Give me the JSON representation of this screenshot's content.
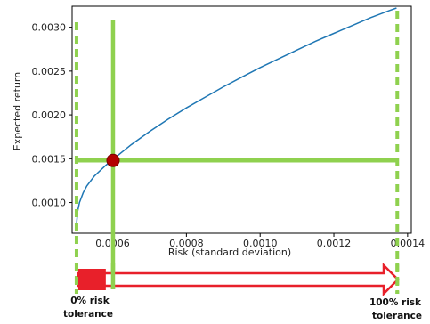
{
  "chart_data": {
    "type": "line",
    "xlabel": "Risk (standard deviation)",
    "ylabel": "Expected return",
    "xlim": [
      0.00049,
      0.00141
    ],
    "ylim": [
      0.00065,
      0.00324
    ],
    "xticks": [
      0.0006,
      0.0008,
      0.001,
      0.0012,
      0.0014
    ],
    "xtick_labels": [
      "0.0006",
      "0.0008",
      "0.0010",
      "0.0012",
      "0.0014"
    ],
    "yticks": [
      0.001,
      0.0015,
      0.002,
      0.0025,
      0.003
    ],
    "ytick_labels": [
      "0.0010",
      "0.0015",
      "0.0020",
      "0.0025",
      "0.0030"
    ],
    "grid": false,
    "frontier": {
      "color": "#1f77b4",
      "x": [
        0.000502,
        0.000505,
        0.00051,
        0.00052,
        0.00053,
        0.00055,
        0.00058,
        0.0006,
        0.00065,
        0.0007,
        0.00075,
        0.0008,
        0.00085,
        0.0009,
        0.00095,
        0.001,
        0.00105,
        0.0011,
        0.00115,
        0.0012,
        0.00125,
        0.0013,
        0.00135,
        0.00137
      ],
      "y": [
        0.00075,
        0.0009,
        0.001,
        0.00111,
        0.00119,
        0.0013,
        0.00142,
        0.00149,
        0.00166,
        0.00181,
        0.00195,
        0.00208,
        0.0022,
        0.00232,
        0.00243,
        0.00254,
        0.00264,
        0.00274,
        0.00284,
        0.00293,
        0.00302,
        0.00311,
        0.00319,
        0.00322
      ]
    },
    "selected_point": {
      "x": 0.000601,
      "y": 0.00148,
      "color": "#b30000"
    },
    "guide_color": "#8fd14f",
    "min_risk_x": 0.000502,
    "max_risk_x": 0.001372,
    "slider_fill_color": "#e8202a",
    "slider_fraction": 0.09
  },
  "labels": {
    "left_line1": "0% risk",
    "left_line2": "tolerance",
    "right_line1": "100% risk",
    "right_line2": "tolerance"
  }
}
